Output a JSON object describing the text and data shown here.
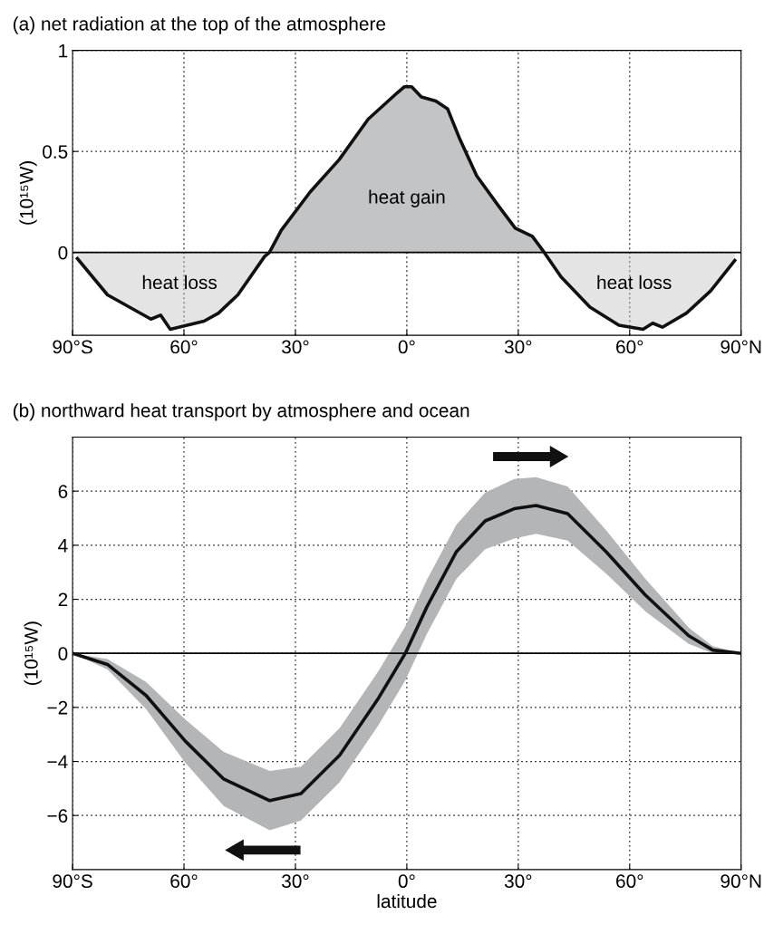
{
  "chart_data": [
    {
      "type": "area",
      "title": "(a) net radiation at the top of the atmosphere",
      "ylabel": "(10¹⁵W)",
      "xlim": [
        -90,
        90
      ],
      "ylim": [
        -0.41,
        1
      ],
      "xticks": [
        {
          "value": -90,
          "label": "90°S"
        },
        {
          "value": -60,
          "label": "60°"
        },
        {
          "value": -30,
          "label": "30°"
        },
        {
          "value": 0,
          "label": "0°"
        },
        {
          "value": 30,
          "label": "30°"
        },
        {
          "value": 60,
          "label": "60°"
        },
        {
          "value": 90,
          "label": "90°N"
        }
      ],
      "yticks": [
        0,
        0.5,
        1
      ],
      "grid": true,
      "legend": false,
      "ref_lines": [
        {
          "axis": "y",
          "value": 0,
          "color": "#000000"
        }
      ],
      "annotations": [
        "heat gain",
        "heat loss",
        "heat loss"
      ],
      "series": [
        {
          "color": "#c3c4c6",
          "x": [
            -88.7,
            -80.6,
            -68.9,
            -66.3,
            -63.7,
            -54.6,
            -50.7,
            -45.5,
            -38.3,
            -37,
            -33.8,
            -26,
            -18.2,
            -10.4,
            -2.6,
            -0.7,
            1.3,
            3.9,
            7.8,
            11,
            14.3,
            18.8,
            24.7,
            29.2,
            33.8,
            37,
            41.5,
            49.3,
            57.1,
            63.6,
            66.2,
            68.8,
            75.3,
            81.8,
            88.3
          ],
          "values": [
            -0.03,
            -0.21,
            -0.33,
            -0.31,
            -0.38,
            -0.34,
            -0.3,
            -0.21,
            -0.02,
            0,
            0.11,
            0.3,
            0.46,
            0.66,
            0.79,
            0.82,
            0.82,
            0.77,
            0.75,
            0.71,
            0.56,
            0.38,
            0.23,
            0.12,
            0.08,
            0,
            -0.12,
            -0.27,
            -0.36,
            -0.38,
            -0.35,
            -0.37,
            -0.3,
            -0.19,
            -0.04
          ]
        }
      ]
    },
    {
      "type": "line",
      "title": "(b) northward heat transport by atmosphere and ocean",
      "ylabel": "(10¹⁵W)",
      "xlabel": "latitude",
      "xlim": [
        -90,
        90
      ],
      "ylim": [
        -8,
        8
      ],
      "xticks": [
        {
          "value": -90,
          "label": "90°S"
        },
        {
          "value": -60,
          "label": "60°"
        },
        {
          "value": -30,
          "label": "30°"
        },
        {
          "value": 0,
          "label": "0°"
        },
        {
          "value": 30,
          "label": "30°"
        },
        {
          "value": 60,
          "label": "60°"
        },
        {
          "value": 90,
          "label": "90°N"
        }
      ],
      "yticks": [
        {
          "value": -6,
          "label": "−6"
        },
        {
          "value": -4,
          "label": "−4"
        },
        {
          "value": -2,
          "label": "−2"
        },
        0,
        2,
        4,
        6
      ],
      "grid": true,
      "legend": false,
      "ref_lines": [
        {
          "axis": "y",
          "value": 0,
          "color": "#000000"
        }
      ],
      "series": [
        {
          "color": "#111111",
          "x": [
            -90,
            -80.6,
            -70.2,
            -59.7,
            -49.3,
            -36.9,
            -28.5,
            -18.1,
            -7.6,
            -0.4,
            5.4,
            13.3,
            21.1,
            28.9,
            34.8,
            43.3,
            53.7,
            64.2,
            75.9,
            82.4,
            90
          ],
          "values": [
            0,
            -0.41,
            -1.56,
            -3.24,
            -4.65,
            -5.45,
            -5.19,
            -3.77,
            -1.65,
            0,
            1.72,
            3.75,
            4.9,
            5.35,
            5.47,
            5.17,
            3.75,
            2.16,
            0.65,
            0.12,
            0
          ],
          "lower": [
            0,
            -0.6,
            -2.06,
            -4.04,
            -5.65,
            -6.55,
            -6.19,
            -4.77,
            -2.65,
            -1.0,
            0.72,
            2.75,
            3.85,
            4.25,
            4.42,
            4.17,
            2.95,
            1.56,
            0.35,
            0.0,
            0
          ],
          "upper": [
            0,
            -0.21,
            -1.06,
            -2.44,
            -3.65,
            -4.35,
            -4.19,
            -2.77,
            -0.65,
            1.0,
            2.72,
            4.75,
            5.95,
            6.45,
            6.52,
            6.17,
            4.55,
            2.76,
            0.95,
            0.27,
            0
          ]
        }
      ]
    }
  ]
}
